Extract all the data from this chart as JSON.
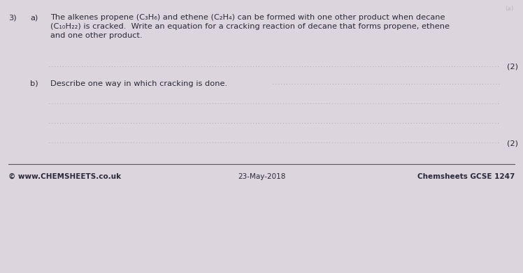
{
  "bg_color": "#ddd5dd",
  "top_right_text": "(a)",
  "question_number": "3)",
  "part_a_label": "a)",
  "part_a_line1": "The alkenes propene (C₃H₆) and ethene (C₂H₄) can be formed with one other product when decane",
  "part_a_line2": "(C₁₀H₂₂) is cracked.  Write an equation for a cracking reaction of decane that forms propene, ethene",
  "part_a_line3": "and one other product.",
  "marks_a": "(2)",
  "part_b_label": "b)",
  "part_b_text": "Describe one way in which cracking is done.",
  "marks_b": "(2)",
  "footer_left": "© www.CHEMSHEETS.co.uk",
  "footer_center": "23-May-2018",
  "footer_right": "Chemsheets GCSE 1247",
  "dotted_line_color": "#aaaaaa",
  "text_color": "#2a2a3a",
  "footer_line_color": "#555555",
  "font_size_body": 8.2,
  "font_size_footer": 7.5,
  "font_size_marks": 8.2,
  "font_size_top": 6.5
}
